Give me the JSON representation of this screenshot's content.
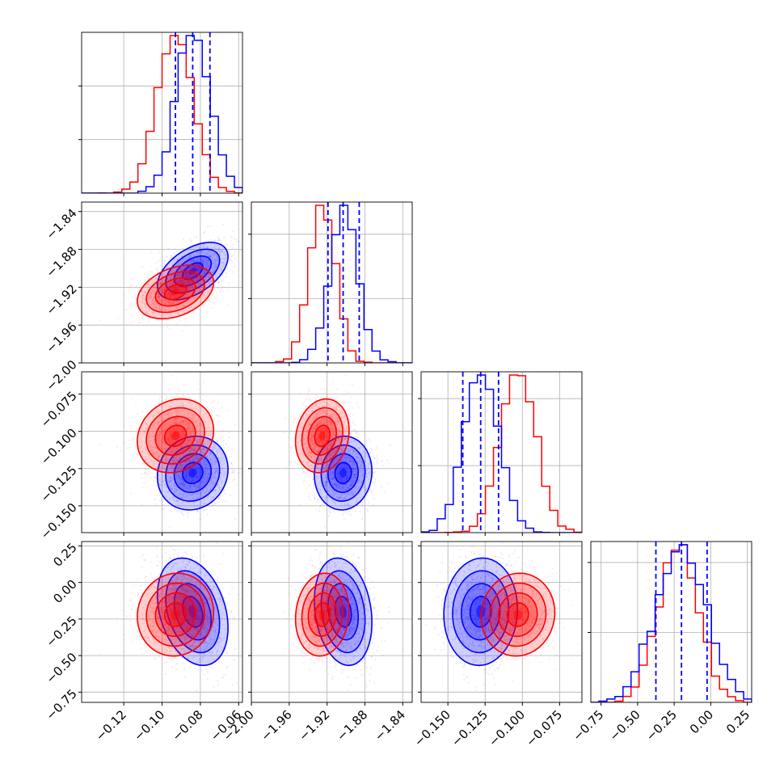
{
  "colors": {
    "red": "#ff0000",
    "blue": "#0000ff",
    "grid": "#b0b0b0",
    "frame": "#000000"
  },
  "chart_data": {
    "type": "corner",
    "parameters": [
      "",
      "",
      "",
      ""
    ],
    "grid": true,
    "series": [
      {
        "color": "#ff0000",
        "mean": [
          -0.093,
          -1.925,
          -0.103,
          -0.22
        ],
        "std": [
          0.0095,
          0.0135,
          0.0118,
          0.135
        ],
        "corr": [
          [
            0,
            1,
            0.35
          ],
          [
            0,
            2,
            0.15
          ],
          [
            0,
            3,
            0.05
          ],
          [
            1,
            2,
            0.15
          ],
          [
            1,
            3,
            0.1
          ],
          [
            2,
            3,
            0.05
          ]
        ]
      },
      {
        "color": "#0000ff",
        "mean": [
          -0.084,
          -1.903,
          -0.128,
          -0.2
        ],
        "std": [
          0.0088,
          0.0145,
          0.0118,
          0.175
        ],
        "corr": [
          [
            0,
            1,
            0.5
          ],
          [
            0,
            2,
            0.1
          ],
          [
            0,
            3,
            -0.3
          ],
          [
            1,
            2,
            0.05
          ],
          [
            1,
            3,
            -0.2
          ],
          [
            2,
            3,
            0.05
          ]
        ]
      }
    ],
    "quantiles_blue": [
      [
        -0.093,
        -0.084,
        -0.075
      ],
      [
        -1.919,
        -1.903,
        -1.886
      ],
      [
        -0.14,
        -0.128,
        -0.116
      ],
      [
        -0.375,
        -0.2,
        -0.025
      ]
    ],
    "axes": [
      {
        "range": [
          -0.142,
          -0.058
        ],
        "ticks": [
          -0.12,
          -0.1,
          -0.08,
          -0.06
        ],
        "tick_labels": [
          "−0.12",
          "−0.10",
          "−0.08",
          "−0.06"
        ]
      },
      {
        "range": [
          -2.0,
          -1.83
        ],
        "ticks": [
          -2.0,
          -1.96,
          -1.92,
          -1.88,
          -1.84
        ],
        "tick_labels": [
          "−2.00",
          "−1.96",
          "−1.92",
          "−1.88",
          "−1.84"
        ]
      },
      {
        "range": [
          -0.168,
          -0.06
        ],
        "ticks": [
          -0.15,
          -0.125,
          -0.1,
          -0.075
        ],
        "tick_labels": [
          "−0.150",
          "−0.125",
          "−0.100",
          "−0.075"
        ]
      },
      {
        "range": [
          -0.82,
          0.28
        ],
        "ticks": [
          -0.75,
          -0.5,
          -0.25,
          0.0,
          0.25
        ],
        "tick_labels": [
          "−0.75",
          "−0.50",
          "−0.25",
          "0.00",
          "0.25"
        ]
      }
    ],
    "hist_ymax": [
      15000,
      12500,
      12000,
      11500
    ]
  }
}
